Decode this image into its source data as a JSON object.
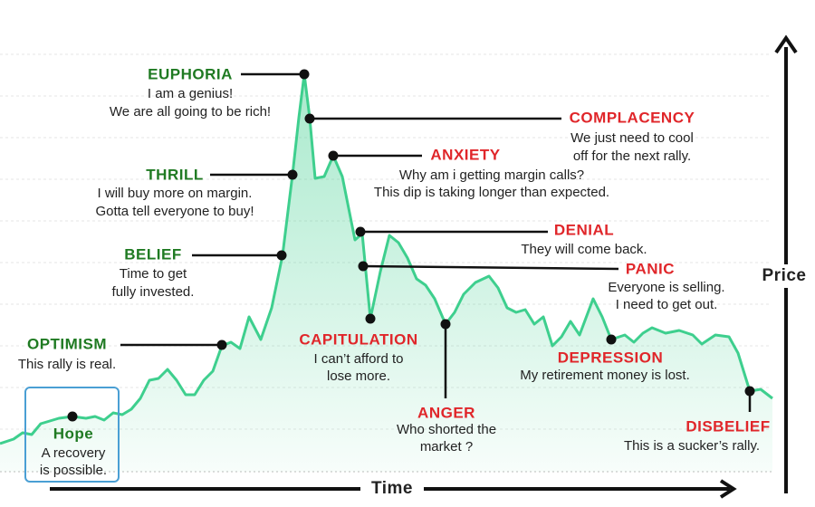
{
  "axes": {
    "y_label": "Price",
    "x_label": "Time"
  },
  "stages": [
    {
      "name": "Hope",
      "lines": [
        "A recovery",
        "is possible."
      ]
    },
    {
      "name": "OPTIMISM",
      "lines": [
        "This rally is real."
      ]
    },
    {
      "name": "BELIEF",
      "lines": [
        "Time to get",
        "fully invested."
      ]
    },
    {
      "name": "THRILL",
      "lines": [
        "I will buy more on margin.",
        "Gotta tell everyone to buy!"
      ]
    },
    {
      "name": "EUPHORIA",
      "lines": [
        "I am a genius!",
        "We are all going to be rich!"
      ]
    },
    {
      "name": "COMPLACENCY",
      "lines": [
        "We just need to cool",
        "off for the next rally."
      ]
    },
    {
      "name": "ANXIETY",
      "lines": [
        "Why am i getting margin calls?",
        "This dip is taking longer than expected."
      ]
    },
    {
      "name": "DENIAL",
      "lines": [
        "They will come back."
      ]
    },
    {
      "name": "PANIC",
      "lines": [
        "Everyone is selling.",
        "I need to get out."
      ]
    },
    {
      "name": "CAPITULATION",
      "lines": [
        "I can’t afford to",
        "lose more."
      ]
    },
    {
      "name": "ANGER",
      "lines": [
        "Who shorted the",
        "market ?"
      ]
    },
    {
      "name": "DEPRESSION",
      "lines": [
        "My retirement money is lost."
      ]
    },
    {
      "name": "DISBELIEF",
      "lines": [
        "This is a sucker’s rally."
      ]
    }
  ]
}
